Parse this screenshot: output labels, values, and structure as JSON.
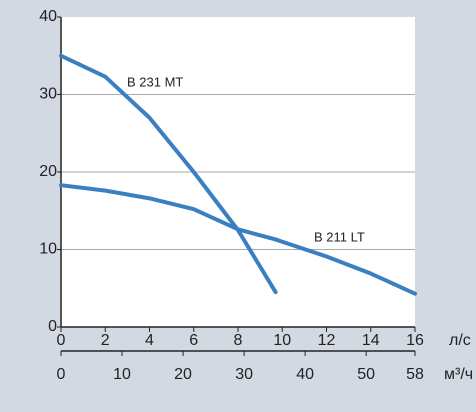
{
  "chart_data": {
    "type": "line",
    "x": [
      0,
      2,
      4,
      6,
      8,
      9.7,
      10,
      12,
      14,
      16
    ],
    "series": [
      {
        "name": "B 231 MT",
        "color": "#3a7fc1",
        "values": [
          35,
          32.3,
          27,
          20,
          12.5,
          4.5,
          null,
          null,
          null,
          null
        ]
      },
      {
        "name": "B 211 LT",
        "color": "#3a7fc1",
        "values": [
          18.3,
          17.6,
          16.6,
          15.2,
          12.6,
          11.3,
          11,
          9.1,
          6.9,
          4.3
        ]
      }
    ],
    "xlim": [
      0,
      16
    ],
    "xticks": [
      0,
      2,
      4,
      6,
      8,
      10,
      12,
      14,
      16
    ],
    "xlabel": "л/с",
    "x2lim": [
      0,
      58
    ],
    "x2ticks": [
      0,
      10,
      20,
      30,
      40,
      50,
      58
    ],
    "x2label": "м³/ч",
    "ylim": [
      0,
      40
    ],
    "yticks": [
      0,
      10,
      20,
      30,
      40
    ],
    "grid": true
  }
}
